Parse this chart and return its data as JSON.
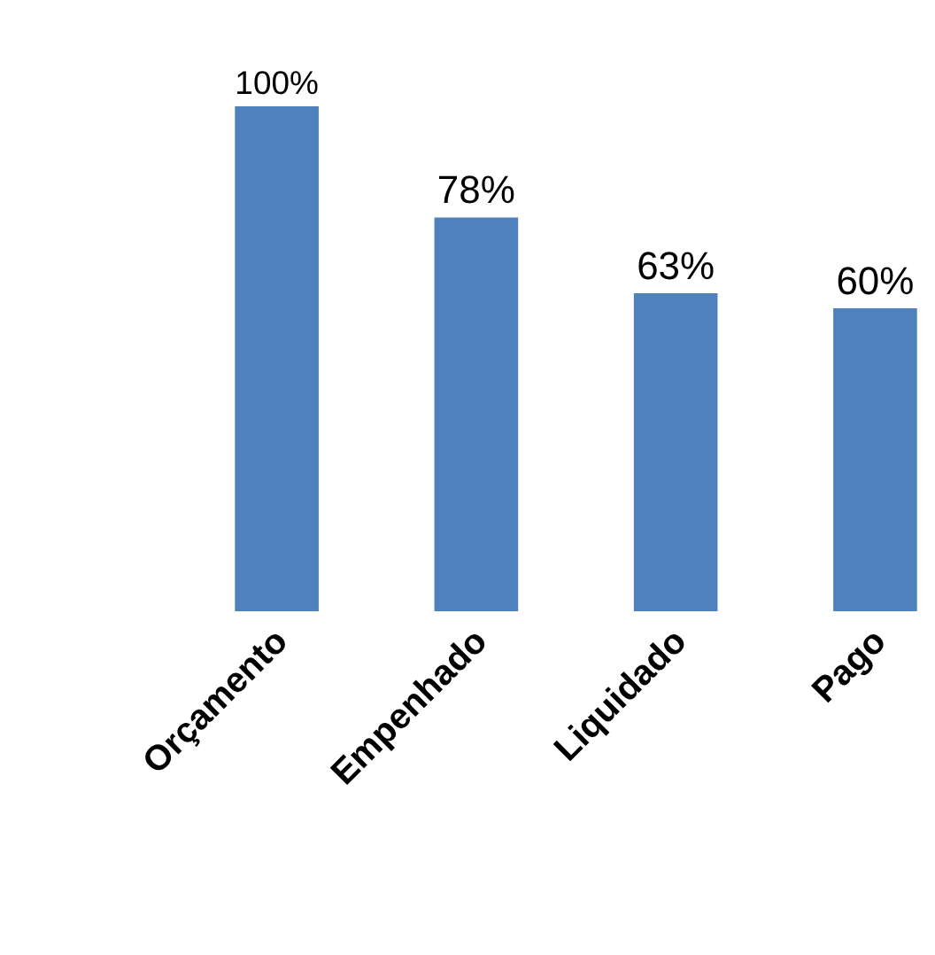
{
  "chart_data": {
    "type": "bar",
    "categories": [
      "Orçamento",
      "Empenhado",
      "Liquidado",
      "Pago"
    ],
    "values": [
      100,
      78,
      63,
      60
    ],
    "value_labels": [
      "100%",
      "78%",
      "63%",
      "60%"
    ],
    "color": "#4f81bd"
  }
}
